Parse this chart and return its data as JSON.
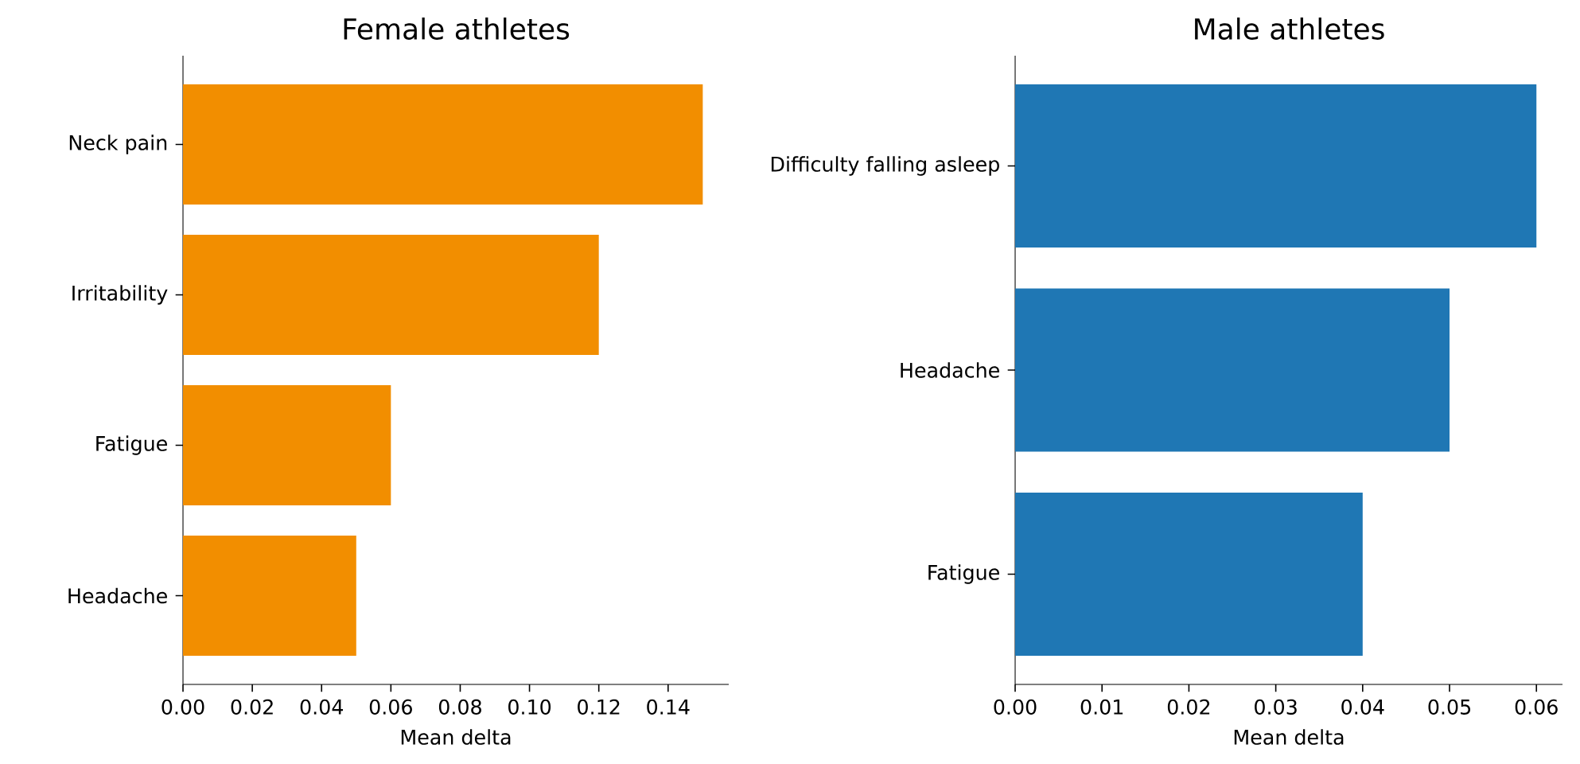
{
  "chart_data": [
    {
      "type": "bar",
      "orientation": "horizontal",
      "title": "Female athletes",
      "xlabel": "Mean delta",
      "categories": [
        "Neck pain",
        "Irritability",
        "Fatigue",
        "Headache"
      ],
      "values": [
        0.15,
        0.12,
        0.06,
        0.05
      ],
      "color": "#f28e00",
      "xlim": [
        0,
        0.1575
      ],
      "xticks": [
        {
          "value": 0,
          "label": "0.00"
        },
        {
          "value": 0.02,
          "label": "0.02"
        },
        {
          "value": 0.04,
          "label": "0.04"
        },
        {
          "value": 0.06,
          "label": "0.06"
        },
        {
          "value": 0.08,
          "label": "0.08"
        },
        {
          "value": 0.1,
          "label": "0.10"
        },
        {
          "value": 0.12,
          "label": "0.12"
        },
        {
          "value": 0.14,
          "label": "0.14"
        }
      ]
    },
    {
      "type": "bar",
      "orientation": "horizontal",
      "title": "Male athletes",
      "xlabel": "Mean delta",
      "categories": [
        "Difficulty falling asleep",
        "Headache",
        "Fatigue"
      ],
      "values": [
        0.06,
        0.05,
        0.04
      ],
      "color": "#1f77b4",
      "xlim": [
        0,
        0.063
      ],
      "xticks": [
        {
          "value": 0,
          "label": "0.00"
        },
        {
          "value": 0.01,
          "label": "0.01"
        },
        {
          "value": 0.02,
          "label": "0.02"
        },
        {
          "value": 0.03,
          "label": "0.03"
        },
        {
          "value": 0.04,
          "label": "0.04"
        },
        {
          "value": 0.05,
          "label": "0.05"
        },
        {
          "value": 0.06,
          "label": "0.06"
        }
      ]
    }
  ]
}
